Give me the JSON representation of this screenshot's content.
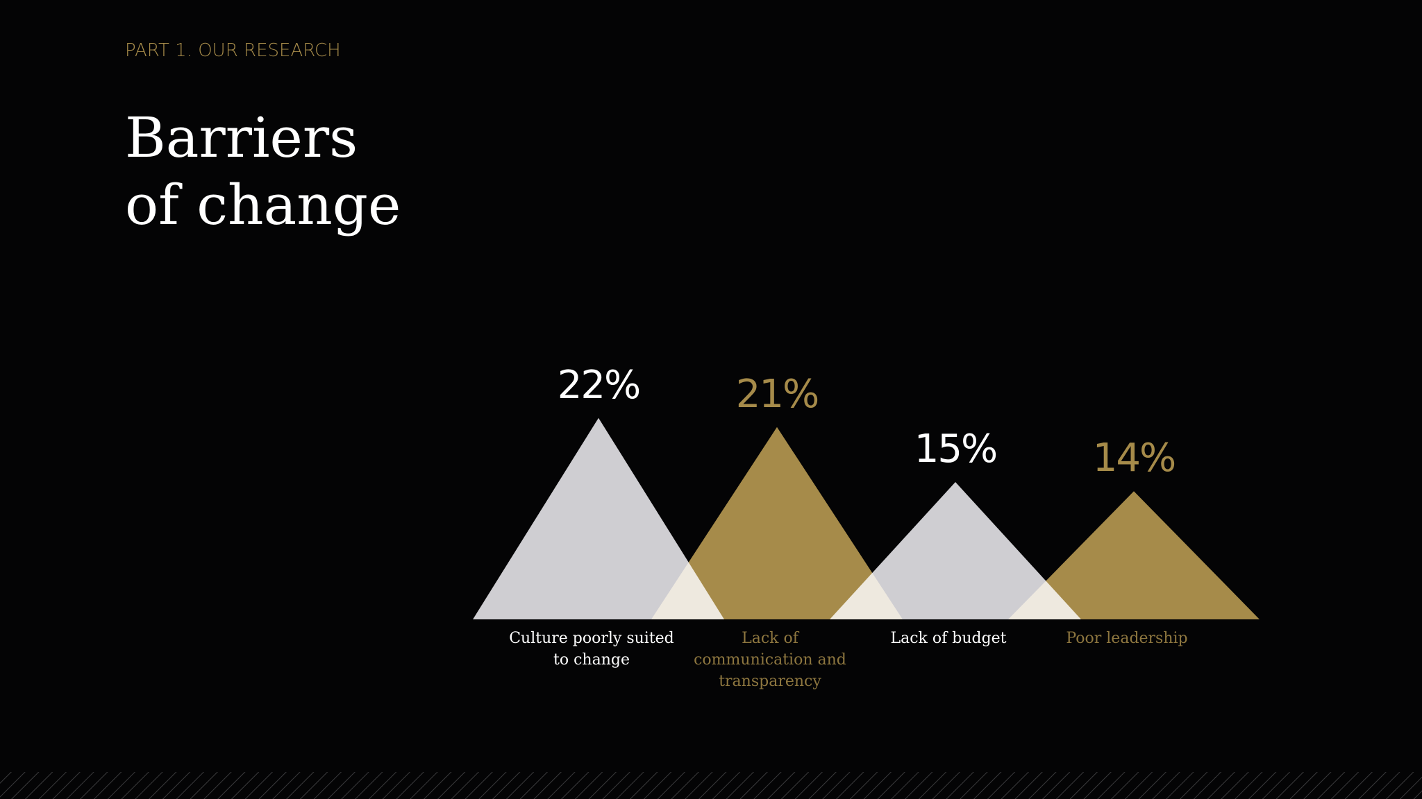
{
  "chart_data": {
    "type": "triangle",
    "subtitle": "PART 1. OUR RESEARCH",
    "title": "Barriers of change",
    "categories": [
      "Culture poorly suited to change",
      "Lack of communication and transparency",
      "Lack of budget",
      "Poor leadership"
    ],
    "values": [
      22,
      21,
      15,
      14
    ],
    "value_labels": [
      "22%",
      "21%",
      "15%",
      "14%"
    ],
    "colors": [
      "#cfced2",
      "#a68b4a",
      "#cfced2",
      "#a68b4a"
    ],
    "text_colors": [
      "#ffffff",
      "#a68b4a",
      "#ffffff",
      "#a68b4a"
    ]
  }
}
